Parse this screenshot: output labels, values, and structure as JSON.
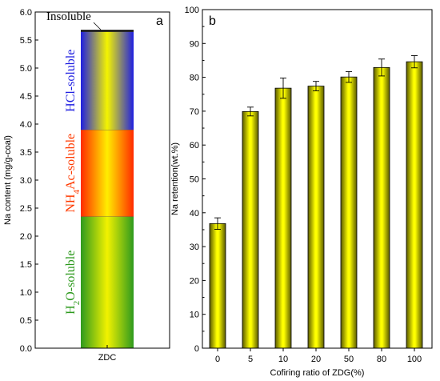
{
  "chart_data": [
    {
      "type": "bar",
      "panel_label": "a",
      "stacked": true,
      "categories": [
        "ZDC"
      ],
      "ylabel": "Na content (mg/g-coal)",
      "xlabel": "",
      "ylim": [
        0,
        6.0
      ],
      "yticks": [
        0.0,
        0.5,
        1.0,
        1.5,
        2.0,
        2.5,
        3.0,
        3.5,
        4.0,
        4.5,
        5.0,
        5.5,
        6.0
      ],
      "ytick_labels": [
        "0.0",
        "0.5",
        "1.0",
        "1.5",
        "2.0",
        "2.5",
        "3.0",
        "3.5",
        "4.0",
        "4.5",
        "5.0",
        "5.5",
        "6.0"
      ],
      "series": [
        {
          "name": "H2O-soluble",
          "label_main": "H",
          "label_sub": "2",
          "label_rest": "O-soluble",
          "values": [
            2.35
          ],
          "color": "#2e9a1e"
        },
        {
          "name": "NH4Ac-soluble",
          "label_main": "NH",
          "label_sub": "4",
          "label_rest": "Ac-soluble",
          "values": [
            1.55
          ],
          "color": "#ff3a00"
        },
        {
          "name": "HCl-soluble",
          "label_main": "HCl-soluble",
          "label_sub": "",
          "label_rest": "",
          "values": [
            1.75
          ],
          "color": "#1f1fe0"
        },
        {
          "name": "Insoluble",
          "label_main": "Insoluble",
          "label_sub": "",
          "label_rest": "",
          "values": [
            0.02
          ],
          "color": "#000000"
        }
      ]
    },
    {
      "type": "bar",
      "panel_label": "b",
      "categories": [
        "0",
        "5",
        "10",
        "20",
        "50",
        "80",
        "100"
      ],
      "values": [
        36.8,
        69.9,
        76.8,
        77.4,
        80.1,
        82.9,
        84.6
      ],
      "errors": [
        1.7,
        1.3,
        3.0,
        1.4,
        1.6,
        2.5,
        1.8
      ],
      "xlabel": "Cofiring ratio of ZDG(%)",
      "ylabel": "Na retention(wt.%)",
      "ylim": [
        0,
        100
      ],
      "yticks": [
        0,
        10,
        20,
        30,
        40,
        50,
        60,
        70,
        80,
        90,
        100
      ],
      "ytick_labels": [
        "0",
        "10",
        "20",
        "30",
        "40",
        "50",
        "60",
        "70",
        "80",
        "90",
        "100"
      ],
      "bar_color": "#ffff00"
    }
  ]
}
